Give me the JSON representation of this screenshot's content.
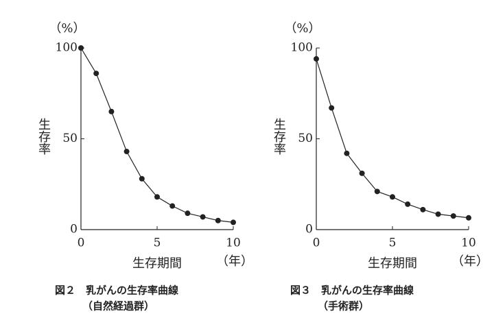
{
  "chart_data": [
    {
      "type": "line",
      "title": "図２　乳がんの生存率曲線",
      "subtitle": "（自然経過群）",
      "y_unit": "（%）",
      "y_label": "生存率",
      "x_label": "生存期間",
      "x_unit": "（年）",
      "x": [
        0,
        1,
        2,
        3,
        4,
        5,
        6,
        7,
        8,
        9,
        10
      ],
      "values": [
        100,
        86,
        65,
        43,
        28,
        18,
        13,
        9,
        7,
        5,
        4
      ],
      "color": "#222",
      "xlim": [
        0,
        10
      ],
      "xticks": [
        0,
        5,
        10
      ],
      "ylim": [
        0,
        100
      ],
      "yticks": [
        0,
        50,
        100
      ]
    },
    {
      "type": "line",
      "title": "図３　乳がんの生存率曲線",
      "subtitle": "（手術群）",
      "y_unit": "（%）",
      "y_label": "生存率",
      "x_label": "生存期間",
      "x_unit": "（年）",
      "x": [
        0,
        1,
        2,
        3,
        4,
        5,
        6,
        7,
        8,
        9,
        10
      ],
      "values": [
        94,
        67,
        42,
        31,
        21,
        18,
        14,
        11,
        8.5,
        7.5,
        6.5
      ],
      "color": "#222",
      "xlim": [
        0,
        10
      ],
      "xticks": [
        0,
        5,
        10
      ],
      "ylim": [
        0,
        100
      ],
      "yticks": [
        0,
        50,
        100
      ]
    }
  ]
}
